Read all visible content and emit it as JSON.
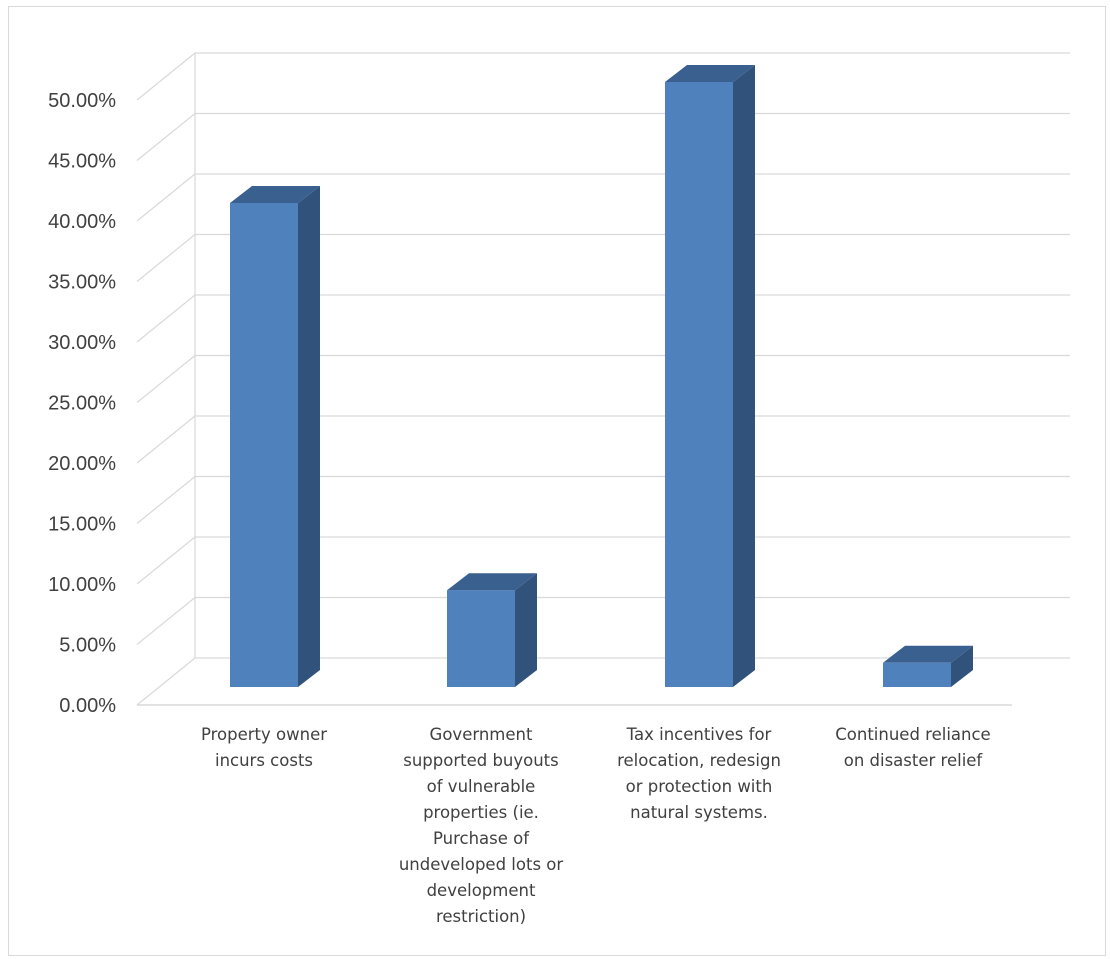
{
  "chart_data": {
    "type": "bar",
    "style": "3d-column",
    "categories": [
      [
        "Property owner",
        "incurs costs"
      ],
      [
        "Government",
        "supported buyouts",
        "of vulnerable",
        "properties (ie.",
        "Purchase of",
        "undeveloped lots or",
        "development",
        "restriction)"
      ],
      [
        "Tax incentives for",
        "relocation, redesign",
        "or protection with",
        "natural systems."
      ],
      [
        "Continued reliance",
        "on disaster relief"
      ]
    ],
    "values": [
      0.4,
      0.08,
      0.5,
      0.02
    ],
    "ylim": [
      0,
      0.5
    ],
    "ytick_step": 0.05,
    "ytick_labels": [
      "0.00%",
      "5.00%",
      "10.00%",
      "15.00%",
      "20.00%",
      "25.00%",
      "30.00%",
      "35.00%",
      "40.00%",
      "45.00%",
      "50.00%"
    ],
    "title": "",
    "xlabel": "",
    "ylabel": "",
    "grid": true,
    "legend": "none",
    "colors": {
      "bar_front": "#4f81bd",
      "bar_side": "#31537b",
      "bar_top": "#3a6090",
      "grid": "#d9d9d9",
      "text": "#404040"
    }
  }
}
